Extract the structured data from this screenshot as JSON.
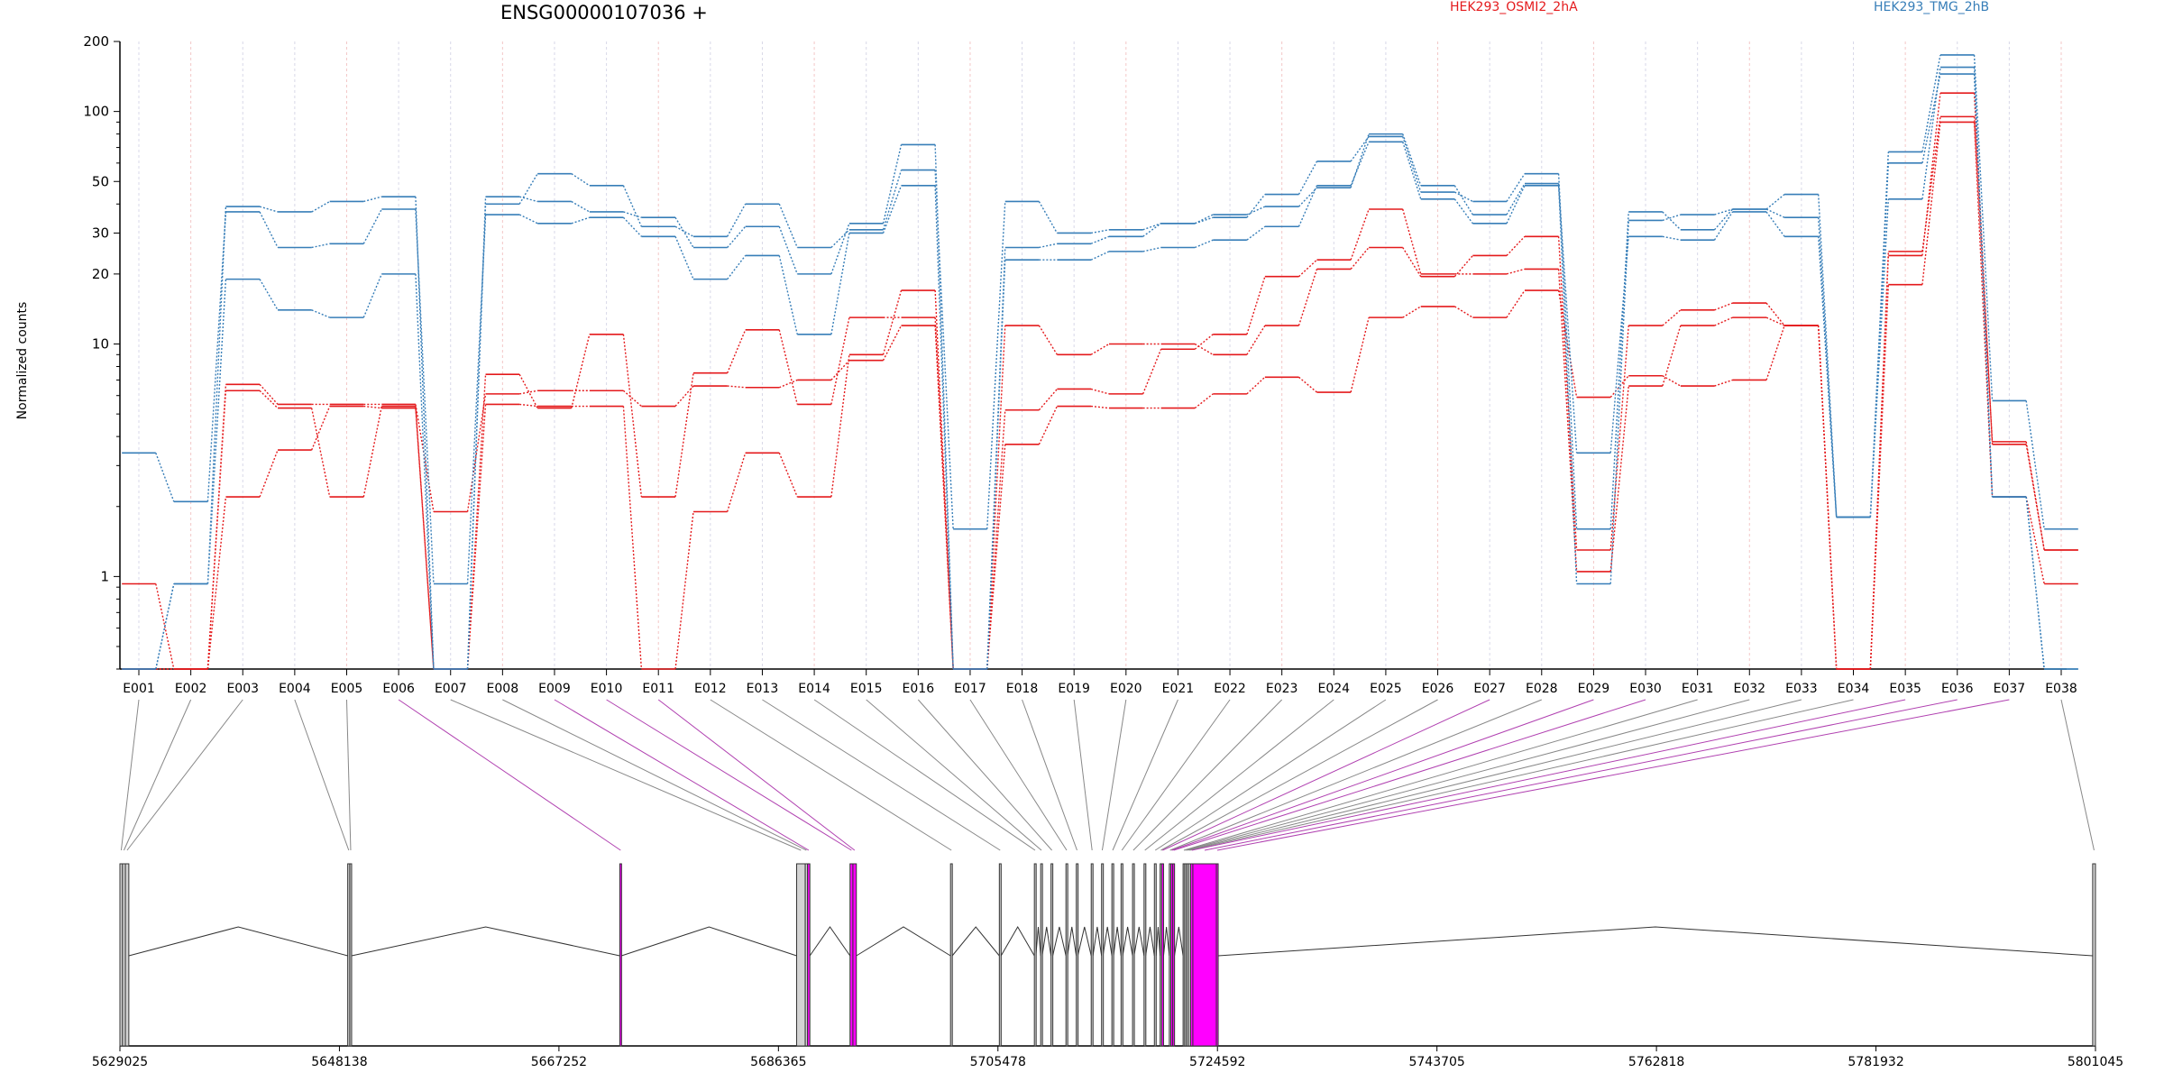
{
  "header": {
    "gene_title": "ENSG00000107036 +",
    "ylabel": "Normalized counts"
  },
  "colors": {
    "condition_a": "#e41a1c",
    "condition_b": "#377eb8",
    "highlight_exon": "#ff00ff",
    "plain_exon": "#d3d3d3",
    "highlight_link": "#b040b0",
    "plain_link": "#888888"
  },
  "chart_data": [
    {
      "type": "line",
      "title": "ENSG00000107036 +",
      "ylabel": "Normalized counts",
      "yscale": "log",
      "ylim": [
        0.4,
        200
      ],
      "yticks": [
        1,
        10,
        20,
        30,
        50,
        100,
        200
      ],
      "grid": true,
      "legend": "top",
      "categories": [
        "E001",
        "E002",
        "E003",
        "E004",
        "E005",
        "E006",
        "E007",
        "E008",
        "E009",
        "E010",
        "E011",
        "E012",
        "E013",
        "E014",
        "E015",
        "E016",
        "E017",
        "E018",
        "E019",
        "E020",
        "E021",
        "E022",
        "E023",
        "E024",
        "E025",
        "E026",
        "E027",
        "E028",
        "E029",
        "E030",
        "E031",
        "E032",
        "E033",
        "E034",
        "E035",
        "E036",
        "E037",
        "E038"
      ],
      "conditions": [
        {
          "name": "HEK293_OSMI2_2hA",
          "color": "#e41a1c"
        },
        {
          "name": "HEK293_TMG_2hB",
          "color": "#377eb8"
        }
      ],
      "series": [
        {
          "condition": "HEK293_OSMI2_2hA",
          "color": "#e41a1c",
          "values": [
            0.93,
            0.4,
            6.7,
            5.5,
            5.5,
            5.5,
            1.9,
            6.1,
            6.3,
            6.3,
            5.4,
            6.6,
            6.5,
            7.0,
            8.5,
            12.0,
            0.4,
            5.2,
            6.4,
            6.1,
            9.5,
            11.0,
            19.5,
            23.0,
            38.0,
            20.0,
            20.0,
            21.0,
            1.05,
            6.6,
            12.0,
            13.0,
            12.0,
            0.4,
            18.0,
            90.0,
            2.2,
            0.93
          ]
        },
        {
          "condition": "HEK293_OSMI2_2hA",
          "color": "#e41a1c",
          "values": [
            0.4,
            0.4,
            6.3,
            5.3,
            2.2,
            5.4,
            0.4,
            7.4,
            5.3,
            11.0,
            2.2,
            7.5,
            11.5,
            5.5,
            13.0,
            13.0,
            0.4,
            12.0,
            9.0,
            10.0,
            10.0,
            9.0,
            12.0,
            21.0,
            26.0,
            19.5,
            24.0,
            29.0,
            1.3,
            12.0,
            14.0,
            15.0,
            12.0,
            0.4,
            25.0,
            95.0,
            3.8,
            1.3
          ]
        },
        {
          "condition": "HEK293_OSMI2_2hA",
          "color": "#e41a1c",
          "values": [
            0.4,
            0.4,
            2.2,
            3.5,
            5.4,
            5.3,
            0.4,
            5.5,
            5.4,
            5.4,
            0.4,
            1.9,
            3.4,
            2.2,
            9.0,
            17.0,
            0.4,
            3.7,
            5.4,
            5.3,
            5.3,
            6.1,
            7.2,
            6.2,
            13.0,
            14.5,
            13.0,
            17.0,
            5.9,
            7.3,
            6.6,
            7.0,
            12.0,
            0.4,
            24.0,
            120.0,
            3.7,
            1.3
          ]
        },
        {
          "condition": "HEK293_TMG_2hB",
          "color": "#377eb8",
          "values": [
            3.4,
            2.1,
            37.0,
            26.0,
            27.0,
            38.0,
            0.93,
            36.0,
            33.0,
            35.0,
            29.0,
            19.0,
            24.0,
            11.0,
            30.0,
            48.0,
            0.4,
            23.0,
            23.0,
            25.0,
            26.0,
            28.0,
            32.0,
            48.0,
            74.0,
            42.0,
            33.0,
            48.0,
            3.4,
            29.0,
            28.0,
            37.0,
            29.0,
            1.8,
            42.0,
            155.0,
            2.2,
            0.4
          ]
        },
        {
          "condition": "HEK293_TMG_2hB",
          "color": "#377eb8",
          "values": [
            0.4,
            0.93,
            19.0,
            14.0,
            13.0,
            20.0,
            0.4,
            40.0,
            54.0,
            48.0,
            32.0,
            29.0,
            40.0,
            26.0,
            31.0,
            56.0,
            1.6,
            41.0,
            30.0,
            31.0,
            33.0,
            35.0,
            44.0,
            61.0,
            78.0,
            45.0,
            41.0,
            54.0,
            1.6,
            37.0,
            31.0,
            38.0,
            44.0,
            1.8,
            67.0,
            175.0,
            5.7,
            1.6
          ]
        },
        {
          "condition": "HEK293_TMG_2hB",
          "color": "#377eb8",
          "values": [
            0.4,
            0.93,
            39.0,
            37.0,
            41.0,
            43.0,
            0.4,
            43.0,
            41.0,
            37.0,
            35.0,
            26.0,
            32.0,
            20.0,
            33.0,
            72.0,
            0.4,
            26.0,
            27.0,
            29.0,
            33.0,
            36.0,
            39.0,
            47.0,
            80.0,
            48.0,
            36.0,
            49.0,
            0.93,
            34.0,
            36.0,
            38.0,
            35.0,
            1.8,
            60.0,
            145.0,
            2.2,
            0.4
          ]
        }
      ]
    },
    {
      "type": "diagram",
      "description_source": "gene model",
      "xlim": [
        5629025,
        5801045
      ],
      "xticks": [
        5629025,
        5648138,
        5667252,
        5686365,
        5705478,
        5724592,
        5743705,
        5762818,
        5781932,
        5801045
      ],
      "exons": [
        {
          "id": "E001",
          "start": 5629025,
          "end": 5629250,
          "highlight": false
        },
        {
          "id": "E002",
          "start": 5629250,
          "end": 5629500,
          "highlight": false
        },
        {
          "id": "E003",
          "start": 5629500,
          "end": 5629800,
          "highlight": false
        },
        {
          "id": "E004",
          "start": 5648860,
          "end": 5649040,
          "highlight": false
        },
        {
          "id": "E005",
          "start": 5649040,
          "end": 5649200,
          "highlight": false
        },
        {
          "id": "E006",
          "start": 5672550,
          "end": 5672700,
          "highlight": true
        },
        {
          "id": "E007",
          "start": 5687950,
          "end": 5688700,
          "highlight": false
        },
        {
          "id": "E008",
          "start": 5688700,
          "end": 5688900,
          "highlight": false
        },
        {
          "id": "E009",
          "start": 5688900,
          "end": 5689100,
          "highlight": true
        },
        {
          "id": "E010",
          "start": 5692600,
          "end": 5692850,
          "highlight": true
        },
        {
          "id": "E011",
          "start": 5692850,
          "end": 5693150,
          "highlight": true
        },
        {
          "id": "E012",
          "start": 5701350,
          "end": 5701500,
          "highlight": false
        },
        {
          "id": "E013",
          "start": 5705600,
          "end": 5705750,
          "highlight": false
        },
        {
          "id": "E014",
          "start": 5708650,
          "end": 5708780,
          "highlight": false
        },
        {
          "id": "E015",
          "start": 5709200,
          "end": 5709330,
          "highlight": false
        },
        {
          "id": "E016",
          "start": 5710100,
          "end": 5710250,
          "highlight": false
        },
        {
          "id": "E017",
          "start": 5711400,
          "end": 5711530,
          "highlight": false
        },
        {
          "id": "E018",
          "start": 5712300,
          "end": 5712430,
          "highlight": false
        },
        {
          "id": "E019",
          "start": 5713600,
          "end": 5713750,
          "highlight": false
        },
        {
          "id": "E020",
          "start": 5714500,
          "end": 5714620,
          "highlight": false
        },
        {
          "id": "E021",
          "start": 5715400,
          "end": 5715540,
          "highlight": false
        },
        {
          "id": "E022",
          "start": 5716200,
          "end": 5716340,
          "highlight": false
        },
        {
          "id": "E023",
          "start": 5717200,
          "end": 5717330,
          "highlight": false
        },
        {
          "id": "E024",
          "start": 5718200,
          "end": 5718340,
          "highlight": false
        },
        {
          "id": "E025",
          "start": 5719100,
          "end": 5719250,
          "highlight": false
        },
        {
          "id": "E026",
          "start": 5719600,
          "end": 5719730,
          "highlight": false
        },
        {
          "id": "E027",
          "start": 5719730,
          "end": 5719900,
          "highlight": true
        },
        {
          "id": "E028",
          "start": 5720400,
          "end": 5720530,
          "highlight": false
        },
        {
          "id": "E029",
          "start": 5720530,
          "end": 5720700,
          "highlight": true
        },
        {
          "id": "E030",
          "start": 5720700,
          "end": 5720850,
          "highlight": true
        },
        {
          "id": "E031",
          "start": 5721600,
          "end": 5721730,
          "highlight": false
        },
        {
          "id": "E032",
          "start": 5721730,
          "end": 5721880,
          "highlight": false
        },
        {
          "id": "E033",
          "start": 5721880,
          "end": 5722050,
          "highlight": false
        },
        {
          "id": "E034",
          "start": 5722050,
          "end": 5722250,
          "highlight": false
        },
        {
          "id": "E035",
          "start": 5722250,
          "end": 5722450,
          "highlight": true
        },
        {
          "id": "E036",
          "start": 5722450,
          "end": 5724500,
          "highlight": true
        },
        {
          "id": "E037",
          "start": 5724500,
          "end": 5724650,
          "highlight": true
        },
        {
          "id": "E038",
          "start": 5800800,
          "end": 5801045,
          "highlight": false
        }
      ]
    }
  ]
}
